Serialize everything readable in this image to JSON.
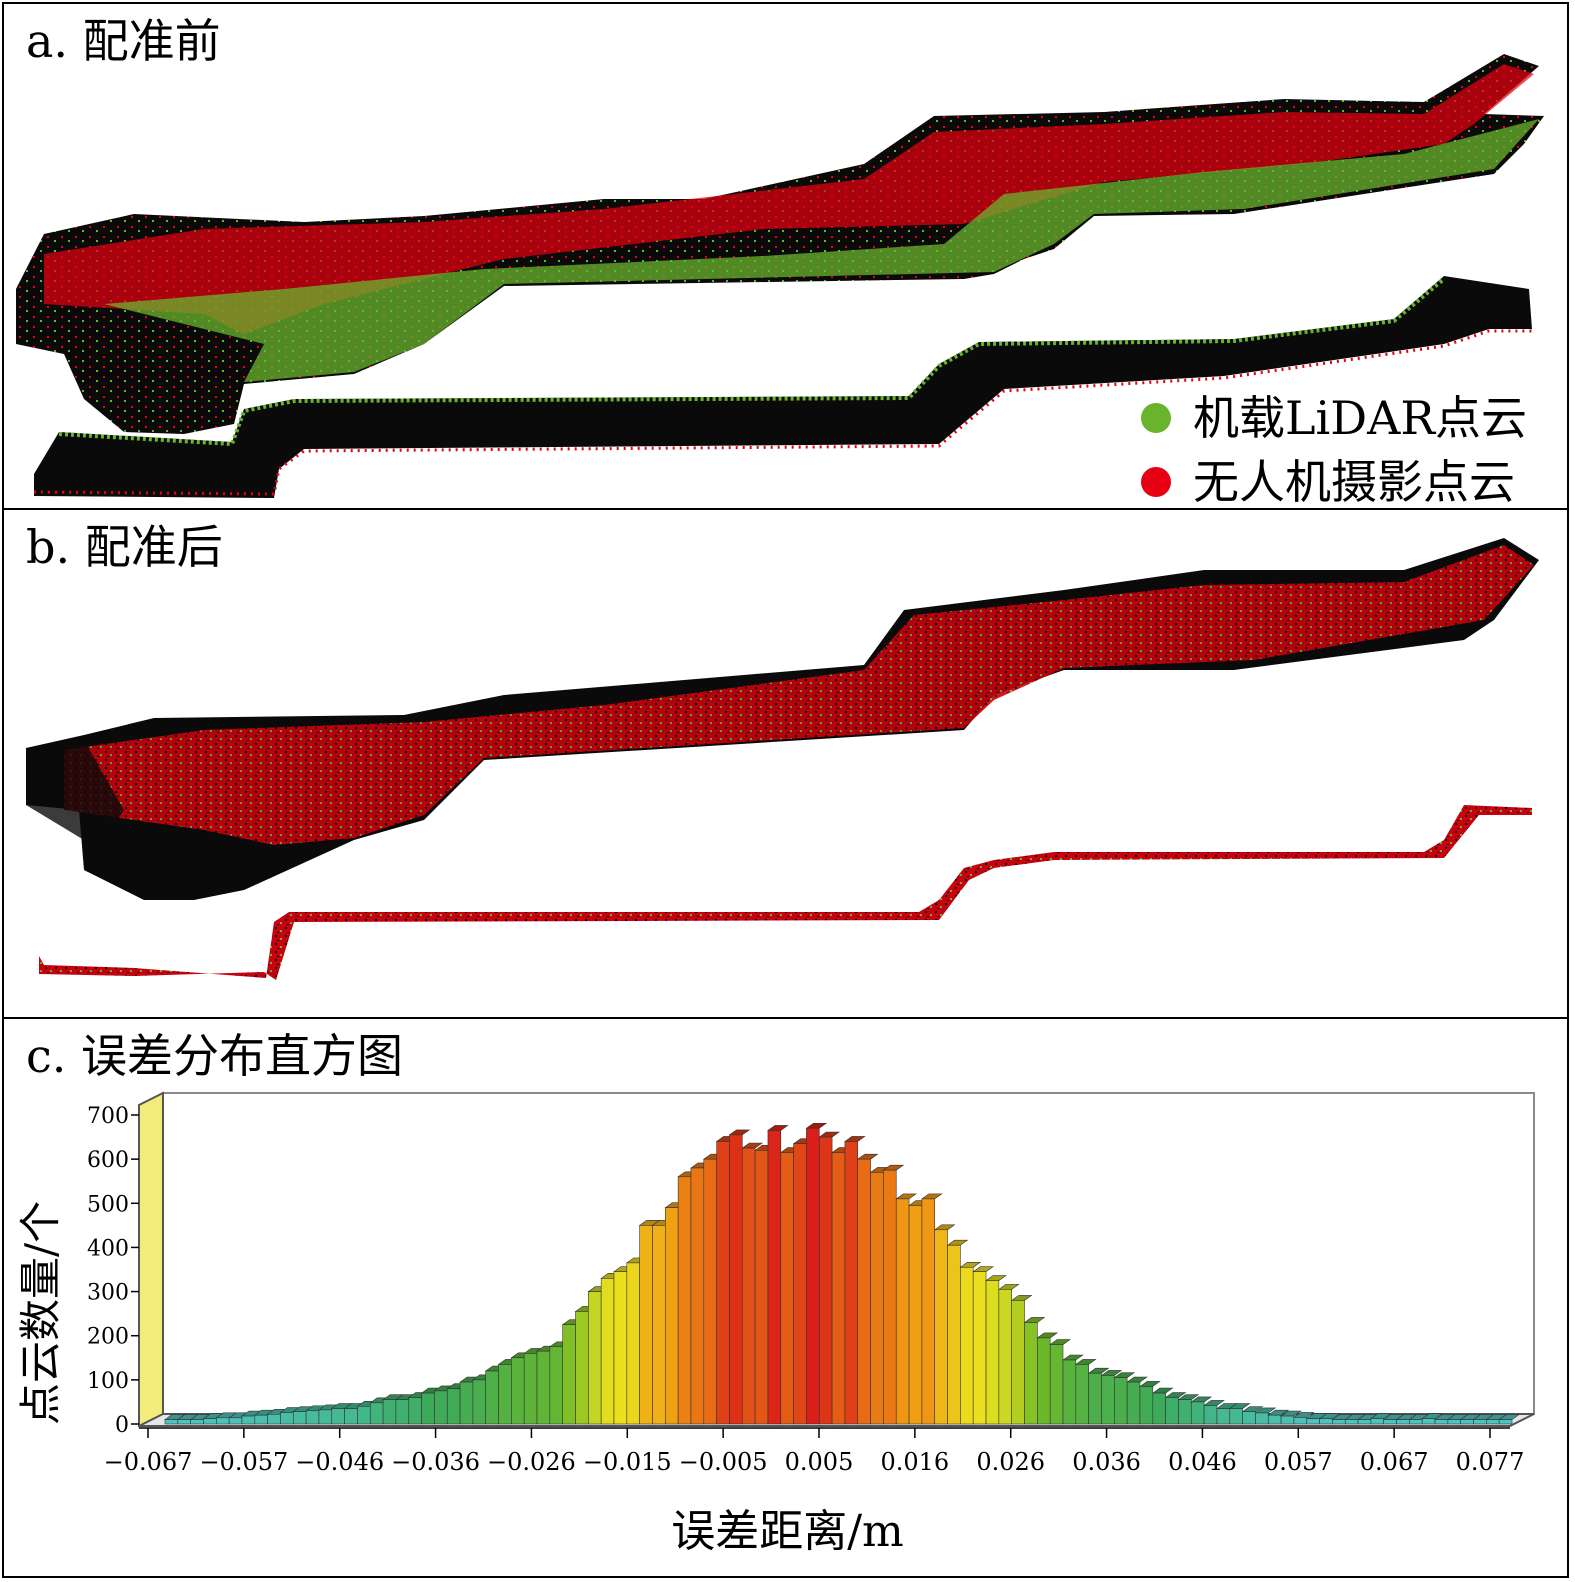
{
  "panels": {
    "a": {
      "title": "a. 配准前"
    },
    "b": {
      "title": "b. 配准后"
    },
    "c": {
      "title": "c. 误差分布直方图"
    }
  },
  "legend": {
    "lidar": {
      "label": "机载LiDAR点云",
      "color": "#6ab42d"
    },
    "uav": {
      "label": "无人机摄影点云",
      "color": "#e60012"
    }
  },
  "colors": {
    "cloud_bg": "#0a0a0a",
    "lidar": "#6ab42d",
    "uav": "#e60012"
  },
  "chart_data": {
    "type": "bar",
    "title": "c. 误差分布直方图",
    "xlabel": "误差距离/m",
    "ylabel": "点云数量/个",
    "xlim": [
      -0.067,
      0.08
    ],
    "ylim": [
      0,
      700
    ],
    "yticks": [
      0,
      100,
      200,
      300,
      400,
      500,
      600,
      700
    ],
    "xticks": [
      "-0.067",
      "-0.057",
      "-0.046",
      "-0.036",
      "-0.026",
      "-0.015",
      "-0.005",
      "0.005",
      "0.016",
      "0.026",
      "0.036",
      "0.046",
      "0.057",
      "0.067",
      "0.077"
    ],
    "grid": false,
    "colormap": "blue-green-yellow-orange-red by count",
    "values": [
      10,
      10,
      10,
      12,
      14,
      14,
      18,
      20,
      22,
      26,
      28,
      30,
      32,
      35,
      35,
      40,
      48,
      55,
      55,
      60,
      70,
      75,
      80,
      95,
      100,
      120,
      135,
      150,
      160,
      165,
      175,
      225,
      255,
      300,
      330,
      345,
      365,
      450,
      450,
      490,
      560,
      580,
      600,
      640,
      655,
      625,
      620,
      665,
      615,
      635,
      670,
      650,
      615,
      640,
      600,
      570,
      575,
      510,
      495,
      510,
      440,
      405,
      355,
      345,
      325,
      305,
      280,
      230,
      195,
      180,
      145,
      135,
      115,
      110,
      105,
      95,
      85,
      70,
      60,
      55,
      50,
      42,
      35,
      35,
      28,
      25,
      20,
      18,
      15,
      12,
      12,
      10,
      10,
      10,
      12,
      10,
      10,
      10,
      12,
      10,
      10,
      10,
      10,
      10,
      10
    ]
  }
}
